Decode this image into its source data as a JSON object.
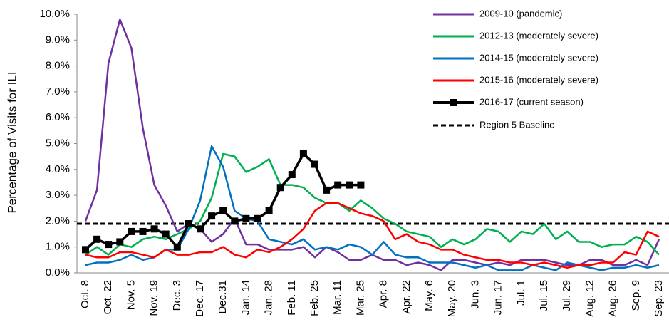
{
  "chart_data": {
    "type": "line",
    "y_label": "Percentage of Visits for ILI",
    "categories": [
      "Oct. 8",
      null,
      "Oct. 22",
      null,
      "Nov. 5",
      null,
      "Nov. 19",
      null,
      "Dec. 3",
      null,
      "Dec. 17",
      null,
      "Dec.31",
      null,
      "Jan. 14",
      null,
      "Jan. 28",
      null,
      "Feb. 11",
      null,
      "Feb. 25",
      null,
      "Mar. 11",
      null,
      "Mar. 25",
      null,
      "Apr. 8",
      null,
      "Apr. 22",
      null,
      "May. 6",
      null,
      "May. 20",
      null,
      "Jun. 3",
      null,
      "Jun. 17",
      null,
      "Jul. 1",
      null,
      "Jul. 15",
      null,
      "Jul. 29",
      null,
      "Aug. 12",
      null,
      "Aug. 26",
      null,
      "Sep. 9",
      null,
      "Sep. 23"
    ],
    "series": [
      {
        "name": "2009-10 (pandemic)",
        "color": "#7030a0",
        "values": [
          2.0,
          3.2,
          8.1,
          9.8,
          8.7,
          5.6,
          3.4,
          2.6,
          1.6,
          1.9,
          1.7,
          1.2,
          1.5,
          2.1,
          1.1,
          1.1,
          0.9,
          0.9,
          0.9,
          1.0,
          0.6,
          1.0,
          0.8,
          0.5,
          0.5,
          0.7,
          0.5,
          0.5,
          0.3,
          0.4,
          0.3,
          0.1,
          0.5,
          0.5,
          0.4,
          0.3,
          0.4,
          0.3,
          0.5,
          0.5,
          0.5,
          0.4,
          0.3,
          0.3,
          0.5,
          0.5,
          0.3,
          0.3,
          0.5,
          0.3,
          1.3
        ]
      },
      {
        "name": "2012-13 (moderately severe)",
        "color": "#00b050",
        "values": [
          0.7,
          1.0,
          0.7,
          1.1,
          1.0,
          1.3,
          1.4,
          1.3,
          1.5,
          1.7,
          2.0,
          2.9,
          4.6,
          4.5,
          3.9,
          4.1,
          4.4,
          3.4,
          3.4,
          3.3,
          2.9,
          2.7,
          2.7,
          2.4,
          2.8,
          2.5,
          2.1,
          1.9,
          1.6,
          1.5,
          1.4,
          1.0,
          1.3,
          1.1,
          1.3,
          1.7,
          1.6,
          1.2,
          1.6,
          1.5,
          1.9,
          1.3,
          1.6,
          1.2,
          1.2,
          1.0,
          1.1,
          1.1,
          1.4,
          1.2,
          0.7
        ]
      },
      {
        "name": "2014-15 (moderately severe)",
        "color": "#0070c0",
        "values": [
          0.3,
          0.4,
          0.4,
          0.5,
          0.7,
          0.5,
          0.6,
          0.9,
          0.9,
          1.7,
          2.8,
          4.9,
          4.1,
          2.4,
          2.1,
          2.0,
          1.3,
          1.2,
          1.1,
          1.3,
          0.9,
          1.0,
          0.9,
          1.1,
          1.0,
          0.7,
          1.2,
          0.7,
          0.6,
          0.6,
          0.4,
          0.4,
          0.4,
          0.3,
          0.2,
          0.3,
          0.1,
          0.1,
          0.1,
          0.3,
          0.2,
          0.1,
          0.4,
          0.3,
          0.2,
          0.1,
          0.2,
          0.2,
          0.3,
          0.2,
          0.3
        ]
      },
      {
        "name": "2015-16 (moderately severe)",
        "color": "#ff0000",
        "values": [
          0.7,
          0.6,
          0.6,
          0.8,
          0.8,
          0.7,
          0.6,
          0.9,
          0.7,
          0.7,
          0.8,
          0.8,
          1.0,
          0.7,
          0.6,
          0.9,
          0.8,
          1.0,
          1.3,
          1.7,
          2.4,
          2.7,
          2.7,
          2.5,
          2.3,
          2.2,
          2.0,
          1.3,
          1.5,
          1.2,
          1.1,
          0.9,
          0.9,
          0.7,
          0.6,
          0.5,
          0.5,
          0.4,
          0.4,
          0.3,
          0.4,
          0.3,
          0.2,
          0.3,
          0.3,
          0.4,
          0.4,
          0.8,
          0.7,
          1.6,
          1.4
        ]
      },
      {
        "name": "2016-17 (current season)",
        "color": "#000000",
        "markers": true,
        "values": [
          0.9,
          1.3,
          1.1,
          1.2,
          1.6,
          1.6,
          1.7,
          1.5,
          1.0,
          1.9,
          1.7,
          2.2,
          2.4,
          2.0,
          2.1,
          2.1,
          2.4,
          3.3,
          3.8,
          4.6,
          4.2,
          3.2,
          3.4,
          3.4,
          3.4,
          null,
          null,
          null,
          null,
          null,
          null,
          null,
          null,
          null,
          null,
          null,
          null,
          null,
          null,
          null,
          null,
          null,
          null,
          null,
          null,
          null,
          null,
          null,
          null,
          null,
          null
        ]
      }
    ],
    "baseline": {
      "name": "Region 5 Baseline",
      "value": 1.9,
      "color": "#000000"
    },
    "ylim": [
      0,
      10
    ],
    "yticks": [
      {
        "value": 0,
        "label": "0.0%"
      },
      {
        "value": 1,
        "label": "1.0%"
      },
      {
        "value": 2,
        "label": "2.0%"
      },
      {
        "value": 3,
        "label": "3.0%"
      },
      {
        "value": 4,
        "label": "4.0%"
      },
      {
        "value": 5,
        "label": "5.0%"
      },
      {
        "value": 6,
        "label": "6.0%"
      },
      {
        "value": 7,
        "label": "7.0%"
      },
      {
        "value": 8,
        "label": "8.0%"
      },
      {
        "value": 9,
        "label": "9.0%"
      },
      {
        "value": 10,
        "label": "10.0%"
      }
    ]
  }
}
